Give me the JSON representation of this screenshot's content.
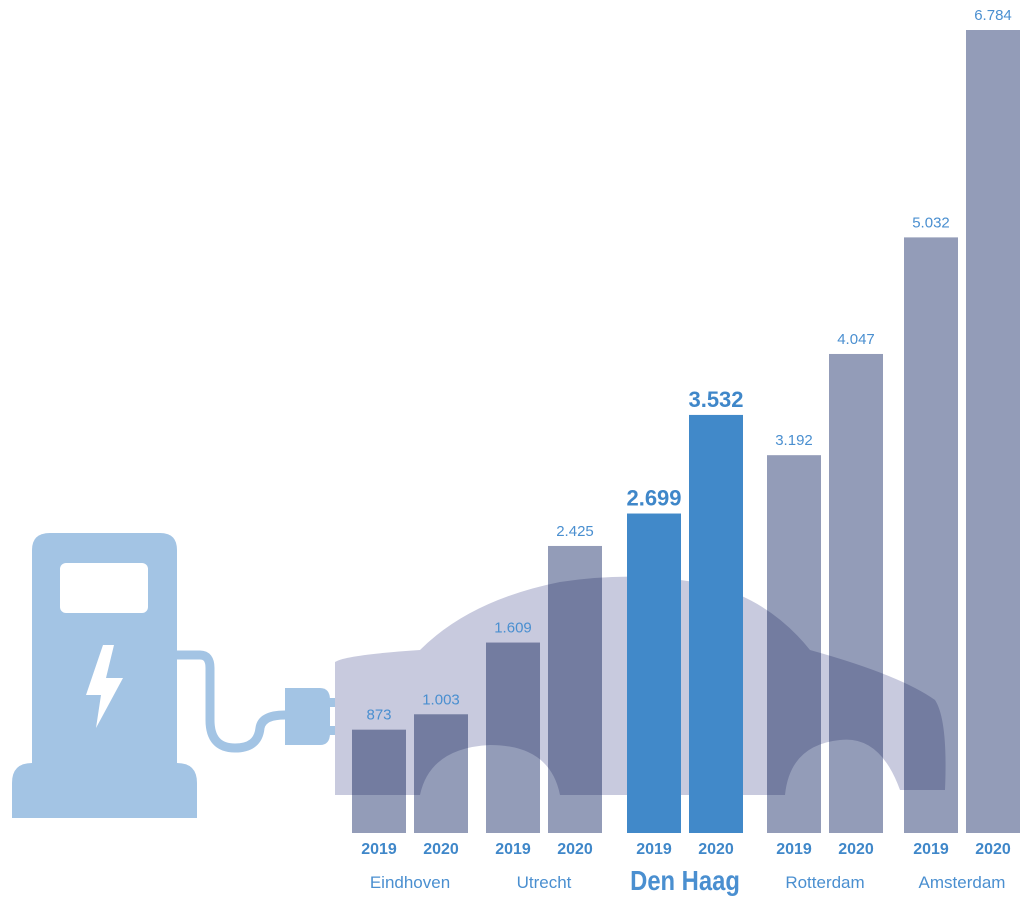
{
  "chart_data": {
    "type": "bar",
    "categories": [
      "Eindhoven",
      "Utrecht",
      "Den Haag",
      "Rotterdam",
      "Amsterdam"
    ],
    "series": [
      {
        "name": "2019",
        "values": [
          873,
          1609,
          2699,
          3192,
          5032
        ],
        "value_labels": [
          "873",
          "1.609",
          "2.699",
          "3.192",
          "5.032"
        ],
        "colors": [
          "#939cb8",
          "#939cb8",
          "#4189c9",
          "#939cb8",
          "#939cb8"
        ]
      },
      {
        "name": "2020",
        "values": [
          1003,
          2425,
          3532,
          4047,
          6784
        ],
        "value_labels": [
          "1.003",
          "2.425",
          "3.532",
          "4.047",
          "6.784"
        ],
        "colors": [
          "#939cb8",
          "#939cb8",
          "#4189c9",
          "#939cb8",
          "#939cb8"
        ]
      }
    ],
    "highlight": [
      false,
      false,
      true,
      false,
      false
    ]
  }
}
